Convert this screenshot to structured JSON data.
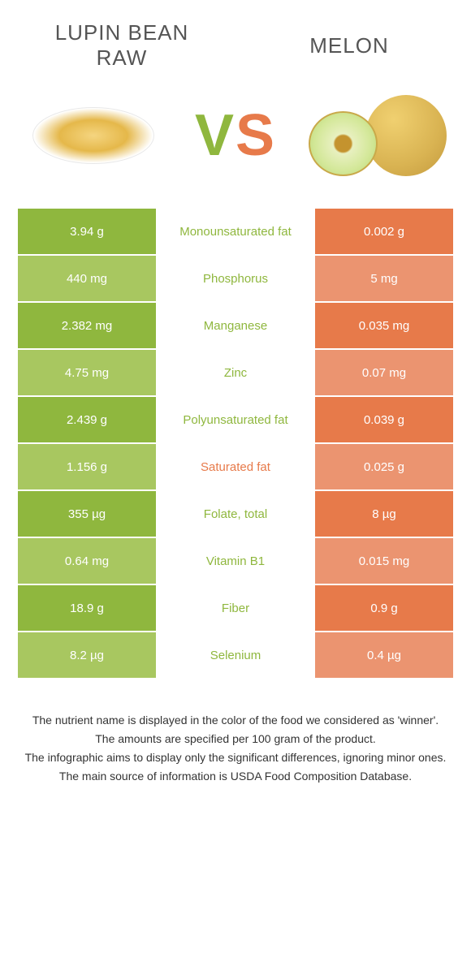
{
  "colors": {
    "green": "#8fb73e",
    "orange": "#e77a4a",
    "green_light": "#a8c760",
    "orange_light": "#eb9470",
    "title_grey": "#555555"
  },
  "foods": {
    "left": {
      "title": "LUPIN BEAN\nRAW",
      "color_key": "green"
    },
    "right": {
      "title": "MELON",
      "color_key": "orange"
    }
  },
  "vs_label": {
    "v": "V",
    "s": "S"
  },
  "rows": [
    {
      "left": "3.94 g",
      "label": "Monounsaturated fat",
      "right": "0.002 g",
      "winner": "left"
    },
    {
      "left": "440 mg",
      "label": "Phosphorus",
      "right": "5 mg",
      "winner": "left"
    },
    {
      "left": "2.382 mg",
      "label": "Manganese",
      "right": "0.035 mg",
      "winner": "left"
    },
    {
      "left": "4.75 mg",
      "label": "Zinc",
      "right": "0.07 mg",
      "winner": "left"
    },
    {
      "left": "2.439 g",
      "label": "Polyunsaturated fat",
      "right": "0.039 g",
      "winner": "left"
    },
    {
      "left": "1.156 g",
      "label": "Saturated fat",
      "right": "0.025 g",
      "winner": "right"
    },
    {
      "left": "355 µg",
      "label": "Folate, total",
      "right": "8 µg",
      "winner": "left"
    },
    {
      "left": "0.64 mg",
      "label": "Vitamin B1",
      "right": "0.015 mg",
      "winner": "left"
    },
    {
      "left": "18.9 g",
      "label": "Fiber",
      "right": "0.9 g",
      "winner": "left"
    },
    {
      "left": "8.2 µg",
      "label": "Selenium",
      "right": "0.4 µg",
      "winner": "left"
    }
  ],
  "footer": [
    "The nutrient name is displayed in the color of the food we considered as 'winner'.",
    "The amounts are specified per 100 gram of the product.",
    "The infographic aims to display only the significant differences, ignoring minor ones.",
    "The main source of information is USDA Food Composition Database."
  ]
}
